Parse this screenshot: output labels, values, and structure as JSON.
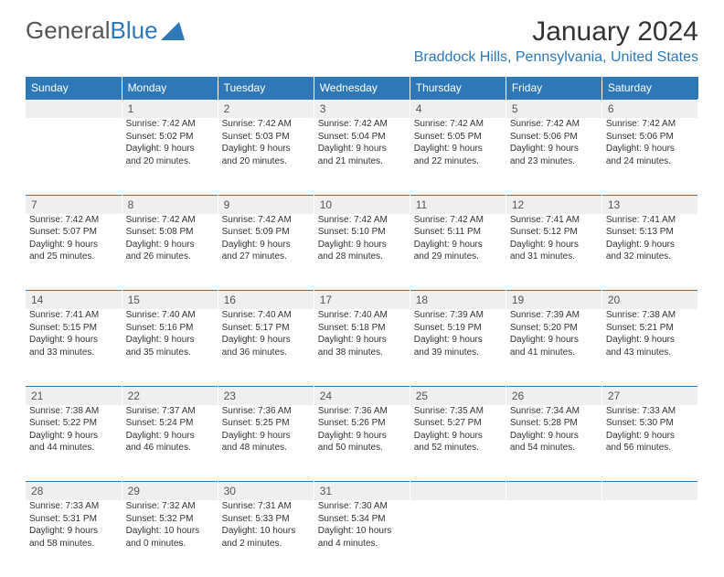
{
  "logo": {
    "text1": "General",
    "text2": "Blue"
  },
  "title": "January 2024",
  "location": "Braddock Hills, Pennsylvania, United States",
  "header_bg": "#2f78b8",
  "header_fg": "#ffffff",
  "daynum_bg": "#efefef",
  "border_color": "#2f78b8",
  "text_color": "#333333",
  "days": [
    "Sunday",
    "Monday",
    "Tuesday",
    "Wednesday",
    "Thursday",
    "Friday",
    "Saturday"
  ],
  "weeks": [
    {
      "nums": [
        "",
        "1",
        "2",
        "3",
        "4",
        "5",
        "6"
      ],
      "cells": [
        [],
        [
          "Sunrise: 7:42 AM",
          "Sunset: 5:02 PM",
          "Daylight: 9 hours",
          "and 20 minutes."
        ],
        [
          "Sunrise: 7:42 AM",
          "Sunset: 5:03 PM",
          "Daylight: 9 hours",
          "and 20 minutes."
        ],
        [
          "Sunrise: 7:42 AM",
          "Sunset: 5:04 PM",
          "Daylight: 9 hours",
          "and 21 minutes."
        ],
        [
          "Sunrise: 7:42 AM",
          "Sunset: 5:05 PM",
          "Daylight: 9 hours",
          "and 22 minutes."
        ],
        [
          "Sunrise: 7:42 AM",
          "Sunset: 5:06 PM",
          "Daylight: 9 hours",
          "and 23 minutes."
        ],
        [
          "Sunrise: 7:42 AM",
          "Sunset: 5:06 PM",
          "Daylight: 9 hours",
          "and 24 minutes."
        ]
      ]
    },
    {
      "nums": [
        "7",
        "8",
        "9",
        "10",
        "11",
        "12",
        "13"
      ],
      "cells": [
        [
          "Sunrise: 7:42 AM",
          "Sunset: 5:07 PM",
          "Daylight: 9 hours",
          "and 25 minutes."
        ],
        [
          "Sunrise: 7:42 AM",
          "Sunset: 5:08 PM",
          "Daylight: 9 hours",
          "and 26 minutes."
        ],
        [
          "Sunrise: 7:42 AM",
          "Sunset: 5:09 PM",
          "Daylight: 9 hours",
          "and 27 minutes."
        ],
        [
          "Sunrise: 7:42 AM",
          "Sunset: 5:10 PM",
          "Daylight: 9 hours",
          "and 28 minutes."
        ],
        [
          "Sunrise: 7:42 AM",
          "Sunset: 5:11 PM",
          "Daylight: 9 hours",
          "and 29 minutes."
        ],
        [
          "Sunrise: 7:41 AM",
          "Sunset: 5:12 PM",
          "Daylight: 9 hours",
          "and 31 minutes."
        ],
        [
          "Sunrise: 7:41 AM",
          "Sunset: 5:13 PM",
          "Daylight: 9 hours",
          "and 32 minutes."
        ]
      ]
    },
    {
      "nums": [
        "14",
        "15",
        "16",
        "17",
        "18",
        "19",
        "20"
      ],
      "cells": [
        [
          "Sunrise: 7:41 AM",
          "Sunset: 5:15 PM",
          "Daylight: 9 hours",
          "and 33 minutes."
        ],
        [
          "Sunrise: 7:40 AM",
          "Sunset: 5:16 PM",
          "Daylight: 9 hours",
          "and 35 minutes."
        ],
        [
          "Sunrise: 7:40 AM",
          "Sunset: 5:17 PM",
          "Daylight: 9 hours",
          "and 36 minutes."
        ],
        [
          "Sunrise: 7:40 AM",
          "Sunset: 5:18 PM",
          "Daylight: 9 hours",
          "and 38 minutes."
        ],
        [
          "Sunrise: 7:39 AM",
          "Sunset: 5:19 PM",
          "Daylight: 9 hours",
          "and 39 minutes."
        ],
        [
          "Sunrise: 7:39 AM",
          "Sunset: 5:20 PM",
          "Daylight: 9 hours",
          "and 41 minutes."
        ],
        [
          "Sunrise: 7:38 AM",
          "Sunset: 5:21 PM",
          "Daylight: 9 hours",
          "and 43 minutes."
        ]
      ]
    },
    {
      "nums": [
        "21",
        "22",
        "23",
        "24",
        "25",
        "26",
        "27"
      ],
      "cells": [
        [
          "Sunrise: 7:38 AM",
          "Sunset: 5:22 PM",
          "Daylight: 9 hours",
          "and 44 minutes."
        ],
        [
          "Sunrise: 7:37 AM",
          "Sunset: 5:24 PM",
          "Daylight: 9 hours",
          "and 46 minutes."
        ],
        [
          "Sunrise: 7:36 AM",
          "Sunset: 5:25 PM",
          "Daylight: 9 hours",
          "and 48 minutes."
        ],
        [
          "Sunrise: 7:36 AM",
          "Sunset: 5:26 PM",
          "Daylight: 9 hours",
          "and 50 minutes."
        ],
        [
          "Sunrise: 7:35 AM",
          "Sunset: 5:27 PM",
          "Daylight: 9 hours",
          "and 52 minutes."
        ],
        [
          "Sunrise: 7:34 AM",
          "Sunset: 5:28 PM",
          "Daylight: 9 hours",
          "and 54 minutes."
        ],
        [
          "Sunrise: 7:33 AM",
          "Sunset: 5:30 PM",
          "Daylight: 9 hours",
          "and 56 minutes."
        ]
      ]
    },
    {
      "nums": [
        "28",
        "29",
        "30",
        "31",
        "",
        "",
        ""
      ],
      "cells": [
        [
          "Sunrise: 7:33 AM",
          "Sunset: 5:31 PM",
          "Daylight: 9 hours",
          "and 58 minutes."
        ],
        [
          "Sunrise: 7:32 AM",
          "Sunset: 5:32 PM",
          "Daylight: 10 hours",
          "and 0 minutes."
        ],
        [
          "Sunrise: 7:31 AM",
          "Sunset: 5:33 PM",
          "Daylight: 10 hours",
          "and 2 minutes."
        ],
        [
          "Sunrise: 7:30 AM",
          "Sunset: 5:34 PM",
          "Daylight: 10 hours",
          "and 4 minutes."
        ],
        [],
        [],
        []
      ]
    }
  ]
}
